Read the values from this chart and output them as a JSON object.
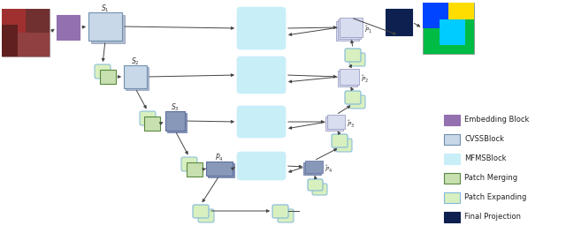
{
  "fig_width": 6.4,
  "fig_height": 2.81,
  "dpi": 100,
  "bg_color": "#ffffff",
  "colors": {
    "embedding": "#9370b0",
    "cvss_fill": "#c8d8e8",
    "cvss_border": "#7090b0",
    "mfms_fill": "#c8eef8",
    "mfms_border": "#c8eef8",
    "patch_merging_fill": "#c8e0b0",
    "patch_merging_border": "#5a8840",
    "patch_expanding_fill": "#d8f0c0",
    "patch_expanding_border": "#80b8d8",
    "final_proj": "#0d2050",
    "skip_fill": "#dce0f0",
    "skip_border": "#9090b8",
    "arrow": "#444444"
  },
  "legend": [
    {
      "label": "Embedding Block",
      "color": "#9370b0",
      "border": "#9370b0"
    },
    {
      "label": "CVSSBlock",
      "color": "#c8d8e8",
      "border": "#7090b0"
    },
    {
      "label": "MFMSBlock",
      "color": "#c8eef8",
      "border": "#c8eef8"
    },
    {
      "label": "Patch Merging",
      "color": "#c8e0b0",
      "border": "#5a8840"
    },
    {
      "label": "Patch Expanding",
      "color": "#d8f0c0",
      "border": "#80b8d8"
    },
    {
      "label": "Final Projection",
      "color": "#0d2050",
      "border": "#0d2050"
    }
  ]
}
